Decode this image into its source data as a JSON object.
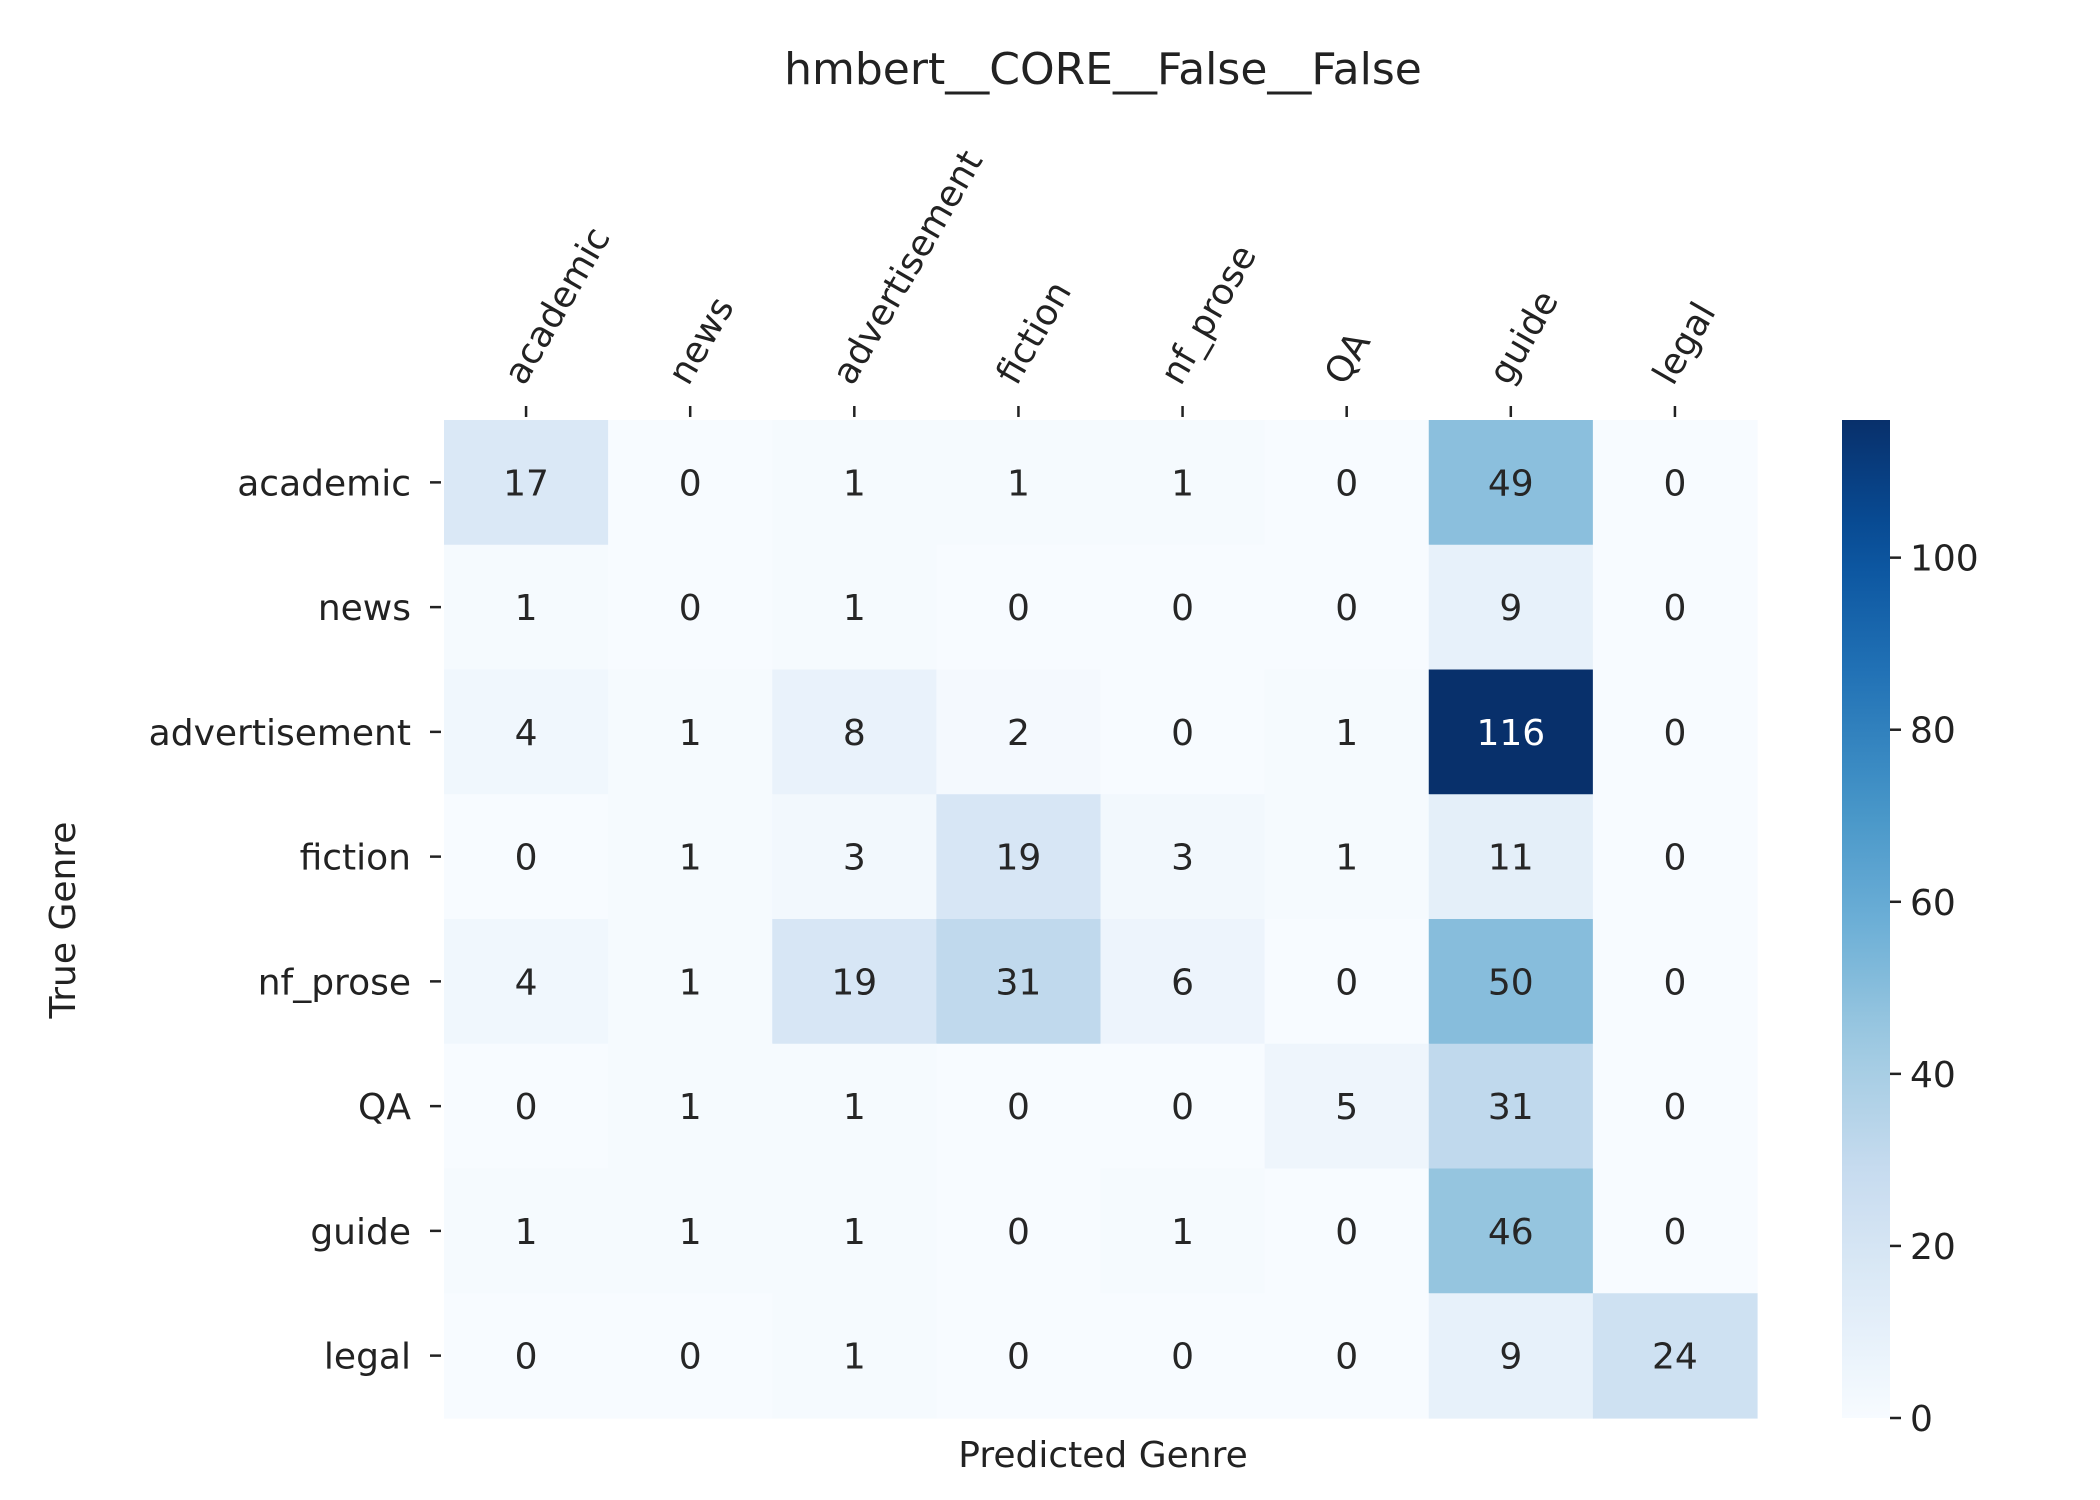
{
  "chart_data": {
    "type": "heatmap",
    "title": "hmbert__CORE__False__False",
    "xlabel": "Predicted Genre",
    "ylabel": "True Genre",
    "x_categories": [
      "academic",
      "news",
      "advertisement",
      "fiction",
      "nf_prose",
      "QA",
      "guide",
      "legal"
    ],
    "y_categories": [
      "academic",
      "news",
      "advertisement",
      "fiction",
      "nf_prose",
      "QA",
      "guide",
      "legal"
    ],
    "values": [
      [
        17,
        0,
        1,
        1,
        1,
        0,
        49,
        0
      ],
      [
        1,
        0,
        1,
        0,
        0,
        0,
        9,
        0
      ],
      [
        4,
        1,
        8,
        2,
        0,
        1,
        116,
        0
      ],
      [
        0,
        1,
        3,
        19,
        3,
        1,
        11,
        0
      ],
      [
        4,
        1,
        19,
        31,
        6,
        0,
        50,
        0
      ],
      [
        0,
        1,
        1,
        0,
        0,
        5,
        31,
        0
      ],
      [
        1,
        1,
        1,
        0,
        1,
        0,
        46,
        0
      ],
      [
        0,
        0,
        1,
        0,
        0,
        0,
        9,
        24
      ]
    ],
    "colormap": "Blues",
    "vmin": 0,
    "vmax": 116,
    "colorbar_ticks": [
      0,
      20,
      40,
      60,
      80,
      100
    ],
    "x_tick_position": "top",
    "grid": false
  }
}
